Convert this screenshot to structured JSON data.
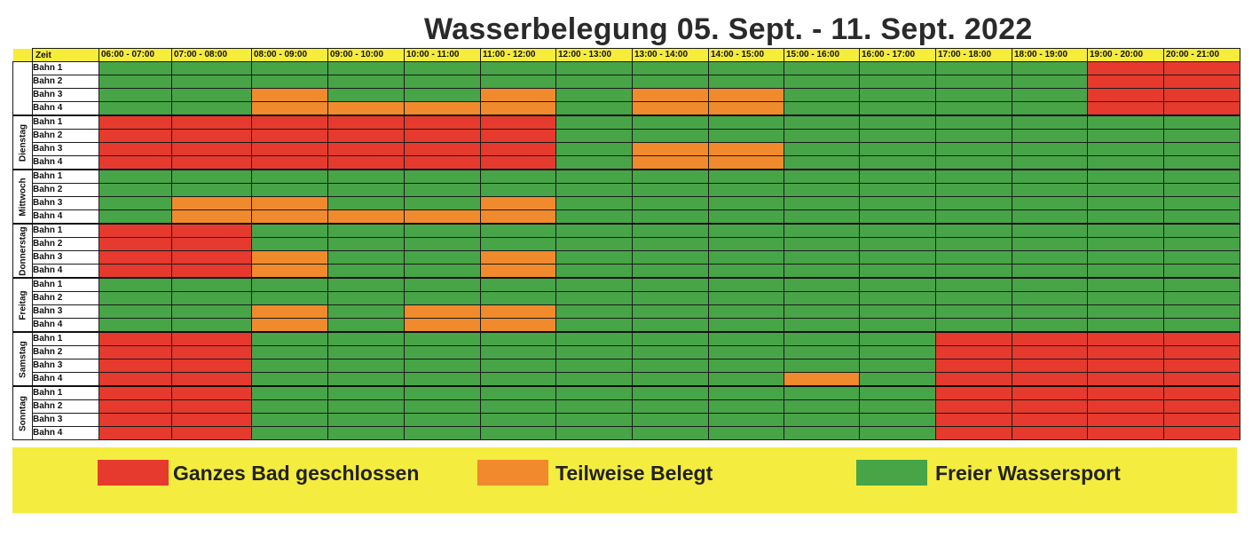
{
  "title": "Wasserbelegung 05. Sept. - 11. Sept. 2022",
  "header": {
    "zeit": "Zeit",
    "times": [
      "06:00 - 07:00",
      "07:00 - 08:00",
      "08:00 - 09:00",
      "09:00 - 10:00",
      "10:00 - 11:00",
      "11:00 - 12:00",
      "12:00 - 13:00",
      "13:00 - 14:00",
      "14:00 - 15:00",
      "15:00 - 16:00",
      "16:00 - 17:00",
      "17:00 - 18:00",
      "18:00 - 19:00",
      "19:00 - 20:00",
      "20:00 - 21:00"
    ]
  },
  "lanes": [
    "Bahn 1",
    "Bahn 2",
    "Bahn 3",
    "Bahn 4"
  ],
  "status_colors": {
    "R": "#e53a2d",
    "O": "#f08a2c",
    "G": "#47a447"
  },
  "days": [
    {
      "name": "",
      "rows": [
        "GGGGGGGGGGGGGRR",
        "GGGGGGGGGGGGGRR",
        "GGOGGOGOOGGGGRR",
        "GGOOOOGOOGGGGRR"
      ]
    },
    {
      "name": "Dienstag",
      "rows": [
        "RRRRRRGGGGGGGGG",
        "RRRRRRGGGGGGGGG",
        "RRRRRRGOOGGGGGG",
        "RRRRRRGOOGGGGGG"
      ]
    },
    {
      "name": "Mittwoch",
      "rows": [
        "GGGGGGGGGGGGGGG",
        "GGGGGGGGGGGGGGG",
        "GOOGGOGGGGGGGGG",
        "GOOOOOGGGGGGGGG"
      ]
    },
    {
      "name": "Donnerstag",
      "rows": [
        "RRGGGGGGGGGGGGG",
        "RRGGGGGGGGGGGGG",
        "RROGGOGGGGGGGGG",
        "RROGGOGGGGGGGGG"
      ]
    },
    {
      "name": "Freitag",
      "rows": [
        "GGGGGGGGGGGGGGG",
        "GGGGGGGGGGGGGGG",
        "GGOGOOGGGGGGGGG",
        "GGOGOOGGGGGGGGG"
      ]
    },
    {
      "name": "Samstag",
      "rows": [
        "RRGGGGGGGGGRRRR",
        "RRGGGGGGGGGRRRR",
        "RRGGGGGGGGGRRRR",
        "RRGGGGGGGOGRRRR"
      ]
    },
    {
      "name": "Sonntag",
      "rows": [
        "RRGGGGGGGGGRRRR",
        "RRGGGGGGGGGRRRR",
        "RRGGGGGGGGGRRRR",
        "RRGGGGGGGGGRRRR"
      ]
    }
  ],
  "legend": {
    "closed": "Ganzes Bad geschlossen",
    "partial": "Teilweise Belegt",
    "free": "Freier Wassersport"
  }
}
